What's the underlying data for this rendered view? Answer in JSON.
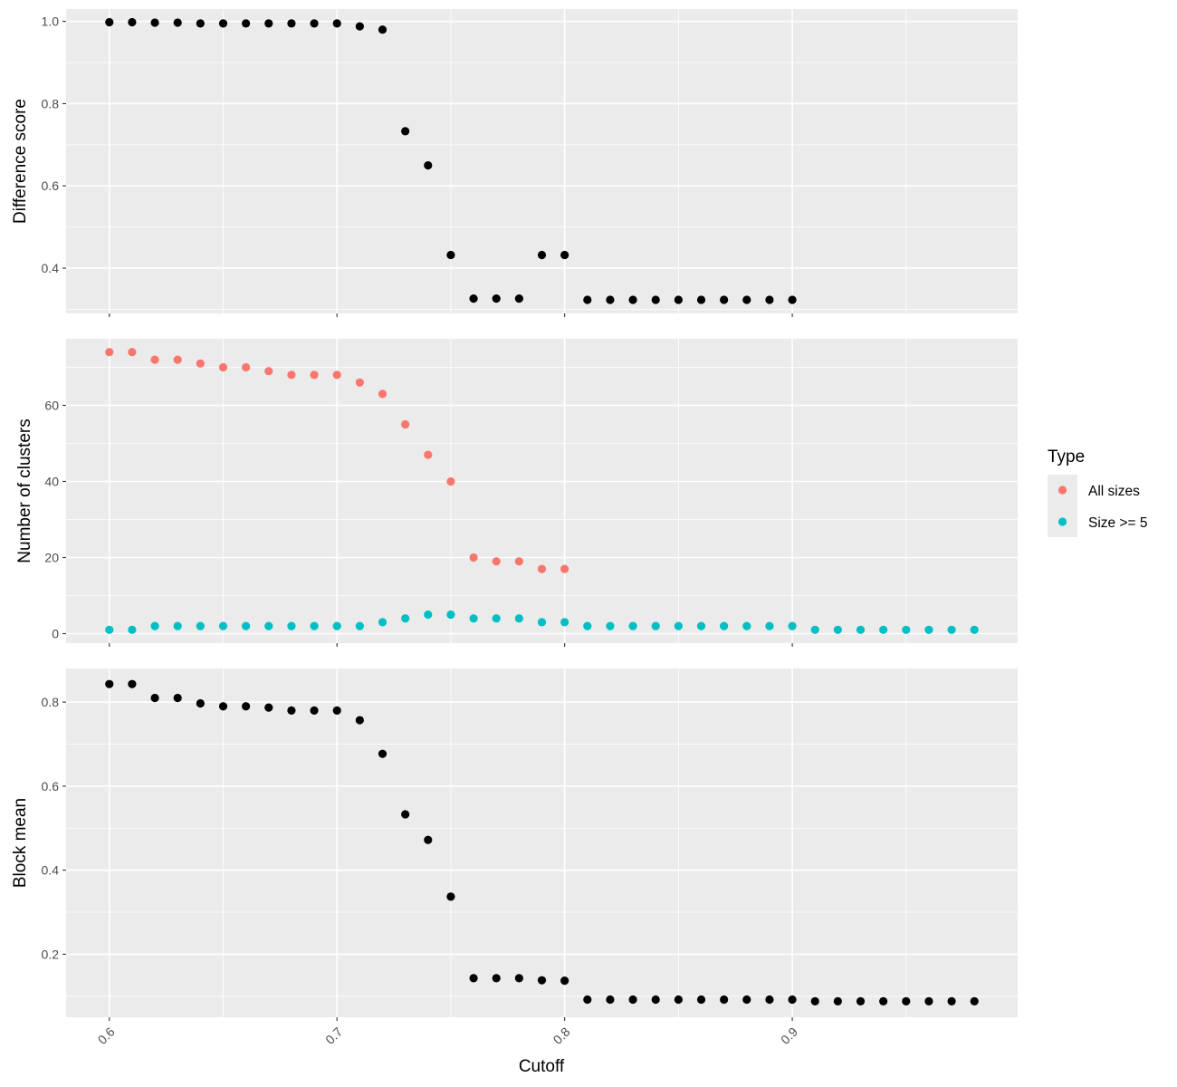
{
  "chart_data": {
    "type": "scatter",
    "xlabel": "Cutoff",
    "x_ticks": [
      0.6,
      0.7,
      0.8,
      0.9
    ],
    "xlim": [
      0.581,
      0.999
    ],
    "x": [
      0.6,
      0.61,
      0.62,
      0.63,
      0.64,
      0.65,
      0.66,
      0.67,
      0.68,
      0.69,
      0.7,
      0.71,
      0.72,
      0.73,
      0.74,
      0.75,
      0.76,
      0.77,
      0.78,
      0.79,
      0.8,
      0.81,
      0.82,
      0.83,
      0.84,
      0.85,
      0.86,
      0.87,
      0.88,
      0.89,
      0.9,
      0.91,
      0.92,
      0.93,
      0.94,
      0.95,
      0.96,
      0.97,
      0.98
    ],
    "panels": [
      {
        "ylabel": "Difference score",
        "ylim": [
          0.29,
          1.03
        ],
        "y_ticks": [
          0.4,
          0.6,
          0.8,
          1.0
        ],
        "y_tick_labels": [
          "0.4",
          "0.6",
          "0.8",
          "1.0"
        ],
        "series": [
          {
            "color": "#000000",
            "values": [
              0.998,
              0.998,
              0.997,
              0.997,
              0.995,
              0.995,
              0.995,
              0.995,
              0.995,
              0.995,
              0.995,
              0.988,
              0.98,
              0.733,
              0.65,
              0.432,
              0.326,
              0.326,
              0.326,
              0.432,
              0.432,
              0.323,
              0.323,
              0.323,
              0.323,
              0.323,
              0.323,
              0.323,
              0.323,
              0.323,
              0.323
            ]
          }
        ]
      },
      {
        "ylabel": "Number of clusters",
        "ylim": [
          -2.5,
          77.5
        ],
        "y_ticks": [
          0,
          20,
          40,
          60
        ],
        "y_tick_labels": [
          "0",
          "20",
          "40",
          "60"
        ],
        "series": [
          {
            "name": "All sizes",
            "color": "#F8766D",
            "values": [
              74,
              74,
              72,
              72,
              71,
              70,
              70,
              69,
              68,
              68,
              68,
              66,
              63,
              55,
              47,
              40,
              20,
              19,
              19,
              17,
              17
            ]
          },
          {
            "name": "Size >= 5",
            "color": "#00BFC4",
            "values": [
              1,
              1,
              2,
              2,
              2,
              2,
              2,
              2,
              2,
              2,
              2,
              2,
              3,
              4,
              5,
              5,
              4,
              4,
              4,
              3,
              3,
              2,
              2,
              2,
              2,
              2,
              2,
              2,
              2,
              2,
              2,
              1,
              1,
              1,
              1,
              1,
              1,
              1,
              1
            ]
          }
        ]
      },
      {
        "ylabel": "Block mean",
        "ylim": [
          0.05,
          0.88
        ],
        "y_ticks": [
          0.2,
          0.4,
          0.6,
          0.8
        ],
        "y_tick_labels": [
          "0.2",
          "0.4",
          "0.6",
          "0.8"
        ],
        "series": [
          {
            "color": "#000000",
            "values": [
              0.843,
              0.843,
              0.81,
              0.81,
              0.797,
              0.79,
              0.79,
              0.787,
              0.78,
              0.78,
              0.78,
              0.757,
              0.677,
              0.533,
              0.472,
              0.337,
              0.143,
              0.143,
              0.143,
              0.138,
              0.137,
              0.092,
              0.092,
              0.092,
              0.092,
              0.092,
              0.092,
              0.092,
              0.092,
              0.092,
              0.092,
              0.088,
              0.088,
              0.088,
              0.088,
              0.088,
              0.088,
              0.088,
              0.088
            ]
          }
        ]
      }
    ],
    "legend": {
      "title": "Type",
      "position": "right",
      "entries": [
        {
          "label": "All sizes",
          "color": "#F8766D"
        },
        {
          "label": "Size >= 5",
          "color": "#00BFC4"
        }
      ]
    },
    "grid": true,
    "background": "#EBEBEB"
  }
}
